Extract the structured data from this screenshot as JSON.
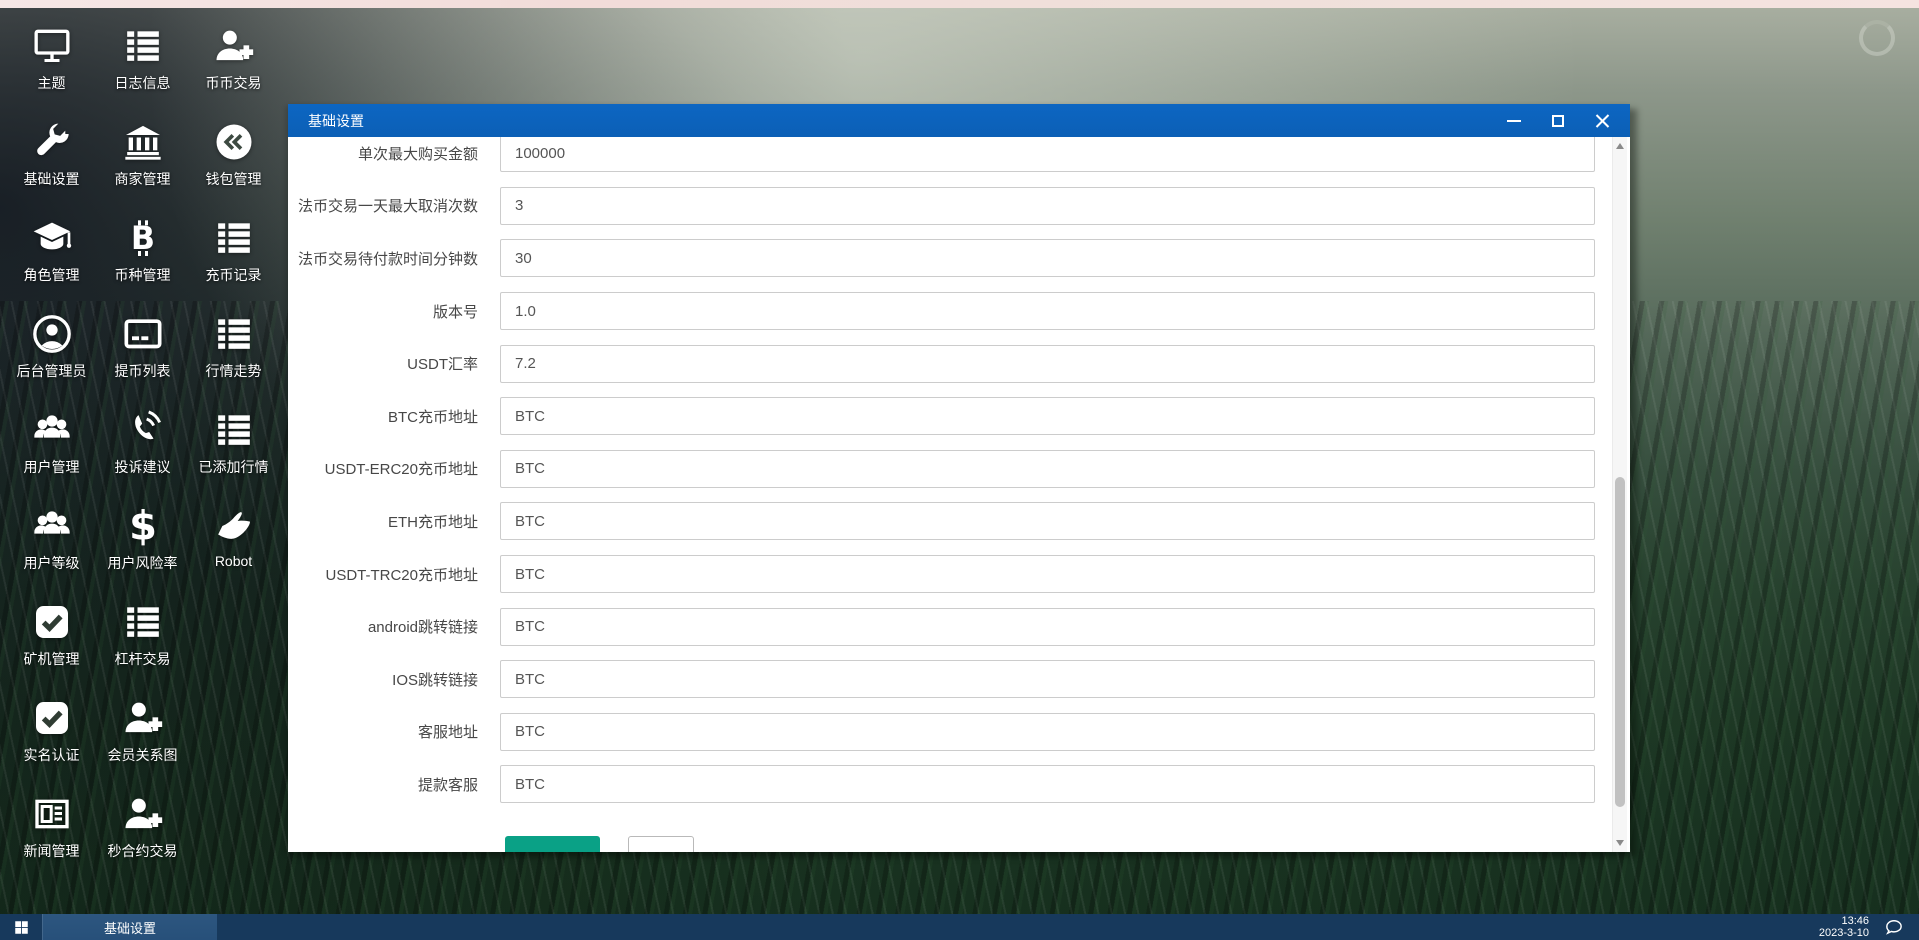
{
  "desktop": {
    "icons": [
      {
        "name": "theme",
        "label": "主题",
        "icon": "monitor"
      },
      {
        "name": "basic-settings",
        "label": "基础设置",
        "icon": "wrench"
      },
      {
        "name": "role-management",
        "label": "角色管理",
        "icon": "gradcap"
      },
      {
        "name": "backend-admin",
        "label": "后台管理员",
        "icon": "usercircle"
      },
      {
        "name": "user-management",
        "label": "用户管理",
        "icon": "users"
      },
      {
        "name": "user-level",
        "label": "用户等级",
        "icon": "users"
      },
      {
        "name": "miner-management",
        "label": "矿机管理",
        "icon": "checksquare"
      },
      {
        "name": "realname-auth",
        "label": "实名认证",
        "icon": "checksquare"
      },
      {
        "name": "news-management",
        "label": "新闻管理",
        "icon": "newspaper"
      },
      {
        "name": "log-info",
        "label": "日志信息",
        "icon": "list"
      },
      {
        "name": "merchant-management",
        "label": "商家管理",
        "icon": "bank"
      },
      {
        "name": "coin-type-management",
        "label": "币种管理",
        "icon": "bitcoin"
      },
      {
        "name": "withdraw-coin-list",
        "label": "提币列表",
        "icon": "card"
      },
      {
        "name": "complaint-suggestion",
        "label": "投诉建议",
        "icon": "phone"
      },
      {
        "name": "user-risk-rate",
        "label": "用户风险率",
        "icon": "dollar"
      },
      {
        "name": "leverage-trading",
        "label": "杠杆交易",
        "icon": "list"
      },
      {
        "name": "member-relation-graph",
        "label": "会员关系图",
        "icon": "userplus"
      },
      {
        "name": "second-contract-trading",
        "label": "秒合约交易",
        "icon": "userplus"
      },
      {
        "name": "coin-coin-trading",
        "label": "币币交易",
        "icon": "userplus"
      },
      {
        "name": "wallet-management",
        "label": "钱包管理",
        "icon": "wallet"
      },
      {
        "name": "deposit-coin-records",
        "label": "充币记录",
        "icon": "list"
      },
      {
        "name": "market-trend",
        "label": "行情走势",
        "icon": "list"
      },
      {
        "name": "added-markets",
        "label": "已添加行情",
        "icon": "list"
      },
      {
        "name": "robot",
        "label": "Robot",
        "icon": "hand"
      }
    ]
  },
  "dialog": {
    "title": "基础设置",
    "window_control_icons": [
      "minimize-icon",
      "maximize-icon",
      "close-icon"
    ],
    "fields": [
      {
        "label": "单次最大购买金额",
        "value": "100000"
      },
      {
        "label": "法币交易一天最大取消次数",
        "value": "3"
      },
      {
        "label": "法币交易待付款时间分钟数",
        "value": "30"
      },
      {
        "label": "版本号",
        "value": "1.0"
      },
      {
        "label": "USDT汇率",
        "value": "7.2"
      },
      {
        "label": "BTC充币地址",
        "value": "BTC"
      },
      {
        "label": "USDT-ERC20充币地址",
        "value": "BTC"
      },
      {
        "label": "ETH充币地址",
        "value": "BTC"
      },
      {
        "label": "USDT-TRC20充币地址",
        "value": "BTC"
      },
      {
        "label": "android跳转链接",
        "value": "BTC"
      },
      {
        "label": "IOS跳转链接",
        "value": "BTC"
      },
      {
        "label": "客服地址",
        "value": "BTC"
      },
      {
        "label": "提款客服",
        "value": "BTC"
      }
    ],
    "buttons": [
      {
        "name": "submit",
        "label": "",
        "color": "#0aa186"
      },
      {
        "name": "reset",
        "label": "",
        "color": "#ffffff"
      }
    ]
  },
  "taskbar": {
    "active_task": "基础设置",
    "clock": {
      "time": "13:46",
      "date": "2023-3-10"
    }
  },
  "colors": {
    "titlebar_blue": "#0d66c2",
    "submit_green": "#0aa186",
    "taskbar_blue": "#17395c",
    "task_active_blue": "#2d567f"
  }
}
